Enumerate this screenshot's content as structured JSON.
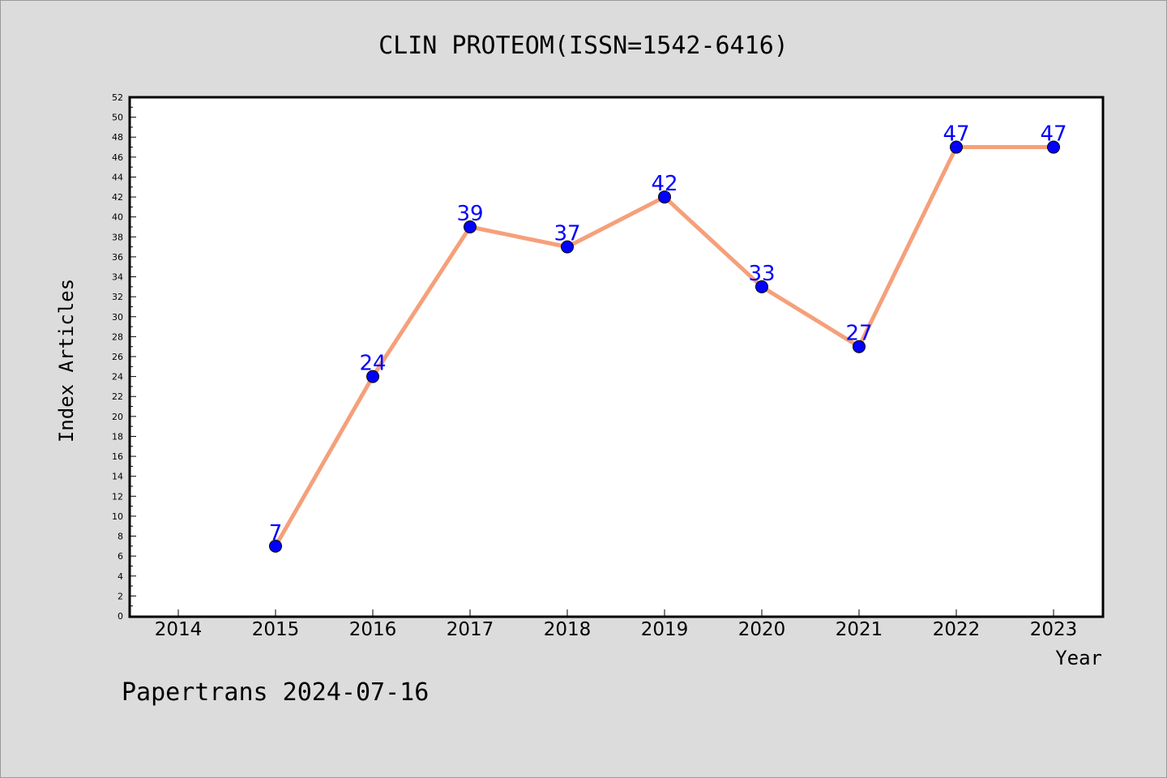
{
  "chart_data": {
    "type": "line",
    "title": "CLIN PROTEOM(ISSN=1542-6416)",
    "xlabel": "Year",
    "ylabel": "Index Articles",
    "categories": [
      "2014",
      "2015",
      "2016",
      "2017",
      "2018",
      "2019",
      "2020",
      "2021",
      "2022",
      "2023"
    ],
    "series": [
      {
        "x": [
          "2015",
          "2016",
          "2017",
          "2018",
          "2019",
          "2020",
          "2021",
          "2022",
          "2023"
        ],
        "values": [
          7,
          24,
          39,
          37,
          42,
          33,
          27,
          47,
          47
        ],
        "labels": [
          "7",
          "24",
          "39",
          "37",
          "42",
          "33",
          "27",
          "47",
          "47"
        ],
        "line_color": "#f5a07a",
        "marker_color": "#0000ff"
      }
    ],
    "ylim": [
      0,
      52
    ],
    "yticks": [
      "0",
      "2",
      "4",
      "6",
      "8",
      "10",
      "12",
      "14",
      "16",
      "18",
      "20",
      "22",
      "24",
      "26",
      "28",
      "30",
      "32",
      "34",
      "36",
      "38",
      "40",
      "42",
      "44",
      "46",
      "48",
      "50",
      "52"
    ],
    "grid": false,
    "legend": "none"
  },
  "footer": "Papertrans 2024-07-16",
  "colors": {
    "background": "#dcdcdc",
    "plot_background": "#ffffff",
    "line": "#f5a07a",
    "marker": "#0000ff",
    "data_label": "#0000ff"
  }
}
